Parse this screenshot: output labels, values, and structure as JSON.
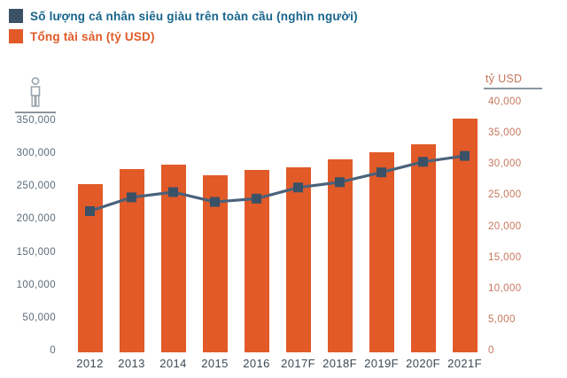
{
  "legend": {
    "series1_label": "Số lượng cá nhân siêu giàu trên toàn cầu (nghìn người)",
    "series2_label": "Tổng tài sản (tỷ USD)"
  },
  "colors": {
    "navy_marker": "#3A5168",
    "line_stroke": "#4A627B",
    "bar_orange": "#E15A28",
    "legend_text_blue": "#17658C",
    "legend_text_orange": "#E05A28",
    "left_axis_text": "#5D6B78",
    "right_axis_text": "#C7765B",
    "x_axis_text": "#3E4953",
    "icon_gray": "#9AA4AE",
    "underline_gray": "#8A959F"
  },
  "left_axis": {
    "icon": "person-icon",
    "ticks": [
      "350,000",
      "300,000",
      "250,000",
      "200,000",
      "150,000",
      "100,000",
      "50,000",
      "0"
    ]
  },
  "right_axis": {
    "title": "tỷ USD",
    "ticks": [
      "40,000",
      "35,000",
      "30,000",
      "25,000",
      "20,000",
      "15,000",
      "10,000",
      "5,000",
      "0"
    ]
  },
  "chart_data": {
    "type": "bar+line combo",
    "categories": [
      "2012",
      "2013",
      "2014",
      "2015",
      "2016",
      "2017F",
      "2018F",
      "2019F",
      "2020F",
      "2021F"
    ],
    "series": [
      {
        "name": "Số lượng cá nhân siêu giàu trên toàn cầu (nghìn người)",
        "type": "line",
        "axis": "left",
        "marker": "square",
        "values": [
          212000,
          233000,
          241000,
          226000,
          231000,
          248000,
          256000,
          271000,
          287000,
          296000
        ]
      },
      {
        "name": "Tổng tài sản (tỷ USD)",
        "type": "bar",
        "axis": "right",
        "values": [
          26700,
          29200,
          29900,
          28200,
          29000,
          29400,
          30800,
          31900,
          33200,
          37300
        ]
      }
    ],
    "ylabel_left": "nghìn người",
    "ylabel_right": "tỷ USD",
    "ylim_left": [
      0,
      350000
    ],
    "ylim_right": [
      0,
      40000
    ],
    "grid": false,
    "legend_position": "top-left"
  }
}
